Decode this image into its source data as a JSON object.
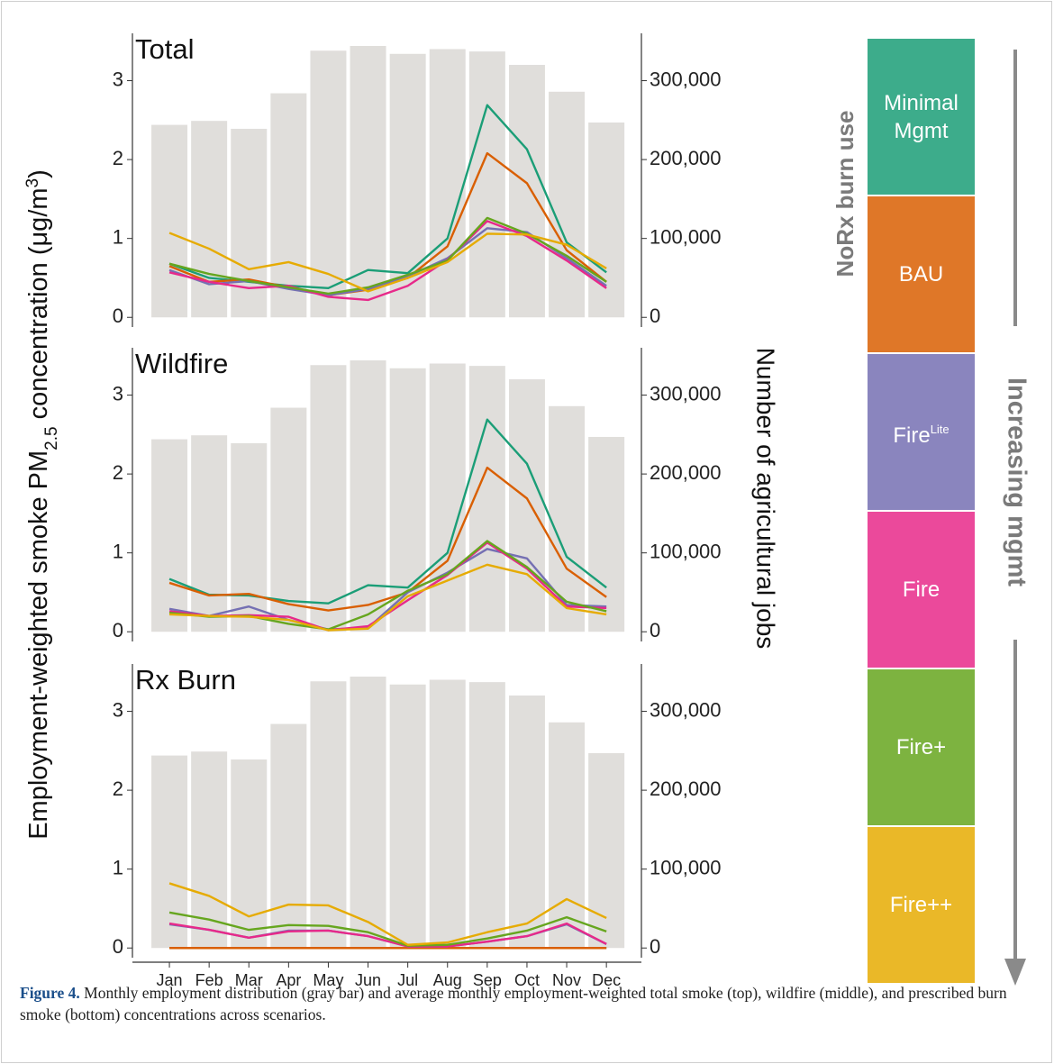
{
  "figure": {
    "ylabel": {
      "main": "Employment-weighted smoke PM",
      "sub": "2.5",
      "rest": " concentration (μg/m",
      "sup": "3",
      "end": ")"
    },
    "y2label": "Number of agricultural jobs",
    "left_arrow_label": "NoRx burn use",
    "right_arrow_label": "Increasing mgmt",
    "caption": {
      "label": "Figure 4.",
      "text": " Monthly employment distribution (gray bar) and average monthly employment-weighted total smoke (top), wildfire (middle), and prescribed burn smoke (bottom) concentrations across scenarios."
    }
  },
  "chart_data": [
    {
      "type": "combo",
      "title": "Total",
      "categories": [
        "Jan",
        "Feb",
        "Mar",
        "Apr",
        "May",
        "Jun",
        "Jul",
        "Aug",
        "Sep",
        "Oct",
        "Nov",
        "Dec"
      ],
      "bars": {
        "axis": "y2",
        "color": "#e0dedb",
        "values": [
          244000,
          249000,
          239000,
          284000,
          338000,
          344000,
          334000,
          340000,
          337000,
          320000,
          286000,
          247000
        ]
      },
      "series": [
        {
          "name": "Minimal Mgmt",
          "color": "#1b9e77",
          "values": [
            0.68,
            0.5,
            0.45,
            0.4,
            0.37,
            0.6,
            0.56,
            1.0,
            2.69,
            2.13,
            0.95,
            0.57
          ]
        },
        {
          "name": "BAU",
          "color": "#d95f02",
          "values": [
            0.65,
            0.45,
            0.48,
            0.38,
            0.28,
            0.35,
            0.5,
            0.9,
            2.08,
            1.7,
            0.85,
            0.45
          ]
        },
        {
          "name": "Fire",
          "name_sup": "Lite",
          "color": "#7570b3",
          "values": [
            0.6,
            0.42,
            0.46,
            0.36,
            0.28,
            0.36,
            0.52,
            0.75,
            1.13,
            1.08,
            0.75,
            0.4
          ]
        },
        {
          "name": "Fire",
          "color": "#e7298a",
          "values": [
            0.57,
            0.45,
            0.37,
            0.4,
            0.26,
            0.22,
            0.4,
            0.73,
            1.22,
            1.03,
            0.72,
            0.37
          ]
        },
        {
          "name": "Fire+",
          "color": "#66a61e",
          "values": [
            0.68,
            0.55,
            0.46,
            0.38,
            0.3,
            0.38,
            0.54,
            0.72,
            1.26,
            1.06,
            0.78,
            0.45
          ]
        },
        {
          "name": "Fire++",
          "color": "#e6ab02",
          "values": [
            1.07,
            0.87,
            0.61,
            0.7,
            0.55,
            0.33,
            0.5,
            0.7,
            1.06,
            1.05,
            0.92,
            0.62
          ]
        }
      ],
      "ylim": [
        -0.1,
        3.6
      ],
      "yticks": [
        0,
        1,
        2,
        3
      ],
      "y2lim": [
        -10000,
        360000
      ],
      "y2ticks": [
        0,
        {
          "value": 100000,
          "label": "100,000"
        },
        {
          "value": 200000,
          "label": "200,000"
        },
        {
          "value": 300000,
          "label": "300,000"
        }
      ]
    },
    {
      "type": "combo",
      "title": "Wildfire",
      "categories": [
        "Jan",
        "Feb",
        "Mar",
        "Apr",
        "May",
        "Jun",
        "Jul",
        "Aug",
        "Sep",
        "Oct",
        "Nov",
        "Dec"
      ],
      "bars": {
        "axis": "y2",
        "color": "#e0dedb",
        "values": [
          244000,
          249000,
          239000,
          284000,
          338000,
          344000,
          334000,
          340000,
          337000,
          320000,
          286000,
          247000
        ]
      },
      "series": [
        {
          "name": "Minimal Mgmt",
          "color": "#1b9e77",
          "values": [
            0.67,
            0.47,
            0.46,
            0.39,
            0.36,
            0.59,
            0.56,
            1.0,
            2.69,
            2.13,
            0.95,
            0.56
          ]
        },
        {
          "name": "BAU",
          "color": "#d95f02",
          "values": [
            0.62,
            0.46,
            0.48,
            0.35,
            0.27,
            0.34,
            0.5,
            0.9,
            2.08,
            1.69,
            0.8,
            0.44
          ]
        },
        {
          "name": "Fire",
          "name_sup": "Lite",
          "color": "#7570b3",
          "values": [
            0.29,
            0.2,
            0.32,
            0.15,
            0.03,
            0.05,
            0.5,
            0.75,
            1.05,
            0.93,
            0.34,
            0.32
          ]
        },
        {
          "name": "Fire",
          "color": "#e7298a",
          "values": [
            0.26,
            0.2,
            0.21,
            0.19,
            0.02,
            0.07,
            0.4,
            0.72,
            1.13,
            0.8,
            0.32,
            0.3
          ]
        },
        {
          "name": "Fire+",
          "color": "#66a61e",
          "values": [
            0.24,
            0.19,
            0.2,
            0.1,
            0.03,
            0.22,
            0.52,
            0.73,
            1.15,
            0.82,
            0.38,
            0.26
          ]
        },
        {
          "name": "Fire++",
          "color": "#e6ab02",
          "values": [
            0.22,
            0.2,
            0.19,
            0.15,
            0.02,
            0.04,
            0.45,
            0.65,
            0.85,
            0.73,
            0.3,
            0.22
          ]
        }
      ],
      "ylim": [
        -0.1,
        3.6
      ],
      "yticks": [
        0,
        1,
        2,
        3
      ],
      "y2lim": [
        -10000,
        360000
      ],
      "y2ticks": [
        0,
        {
          "value": 100000,
          "label": "100,000"
        },
        {
          "value": 200000,
          "label": "200,000"
        },
        {
          "value": 300000,
          "label": "300,000"
        }
      ]
    },
    {
      "type": "combo",
      "title": "Rx Burn",
      "categories": [
        "Jan",
        "Feb",
        "Mar",
        "Apr",
        "May",
        "Jun",
        "Jul",
        "Aug",
        "Sep",
        "Oct",
        "Nov",
        "Dec"
      ],
      "bars": {
        "axis": "y2",
        "color": "#e0dedb",
        "values": [
          244000,
          249000,
          239000,
          284000,
          338000,
          344000,
          334000,
          340000,
          337000,
          320000,
          286000,
          247000
        ]
      },
      "series": [
        {
          "name": "Minimal Mgmt",
          "color": "#1b9e77",
          "values": [
            0,
            0,
            0,
            0,
            0,
            0,
            0,
            0,
            0,
            0,
            0,
            0
          ]
        },
        {
          "name": "BAU",
          "color": "#d95f02",
          "values": [
            0,
            0,
            0,
            0,
            0,
            0,
            0,
            0,
            0,
            0,
            0,
            0
          ]
        },
        {
          "name": "Fire",
          "name_sup": "Lite",
          "color": "#7570b3",
          "values": [
            0.3,
            0.23,
            0.13,
            0.22,
            0.22,
            0.15,
            0.02,
            0.02,
            0.08,
            0.15,
            0.3,
            0.05
          ]
        },
        {
          "name": "Fire",
          "color": "#e7298a",
          "values": [
            0.31,
            0.23,
            0.13,
            0.21,
            0.22,
            0.15,
            0.02,
            0.02,
            0.08,
            0.15,
            0.31,
            0.05
          ]
        },
        {
          "name": "Fire+",
          "color": "#66a61e",
          "values": [
            0.45,
            0.36,
            0.23,
            0.29,
            0.28,
            0.2,
            0.03,
            0.04,
            0.12,
            0.22,
            0.39,
            0.21
          ]
        },
        {
          "name": "Fire++",
          "color": "#e6ab02",
          "values": [
            0.82,
            0.66,
            0.4,
            0.55,
            0.54,
            0.33,
            0.04,
            0.07,
            0.2,
            0.31,
            0.62,
            0.38
          ]
        }
      ],
      "ylim": [
        -0.1,
        3.6
      ],
      "yticks": [
        0,
        1,
        2,
        3
      ],
      "y2lim": [
        -10000,
        360000
      ],
      "y2ticks": [
        0,
        {
          "value": 100000,
          "label": "100,000"
        },
        {
          "value": 200000,
          "label": "200,000"
        },
        {
          "value": 300000,
          "label": "300,000"
        }
      ]
    }
  ]
}
